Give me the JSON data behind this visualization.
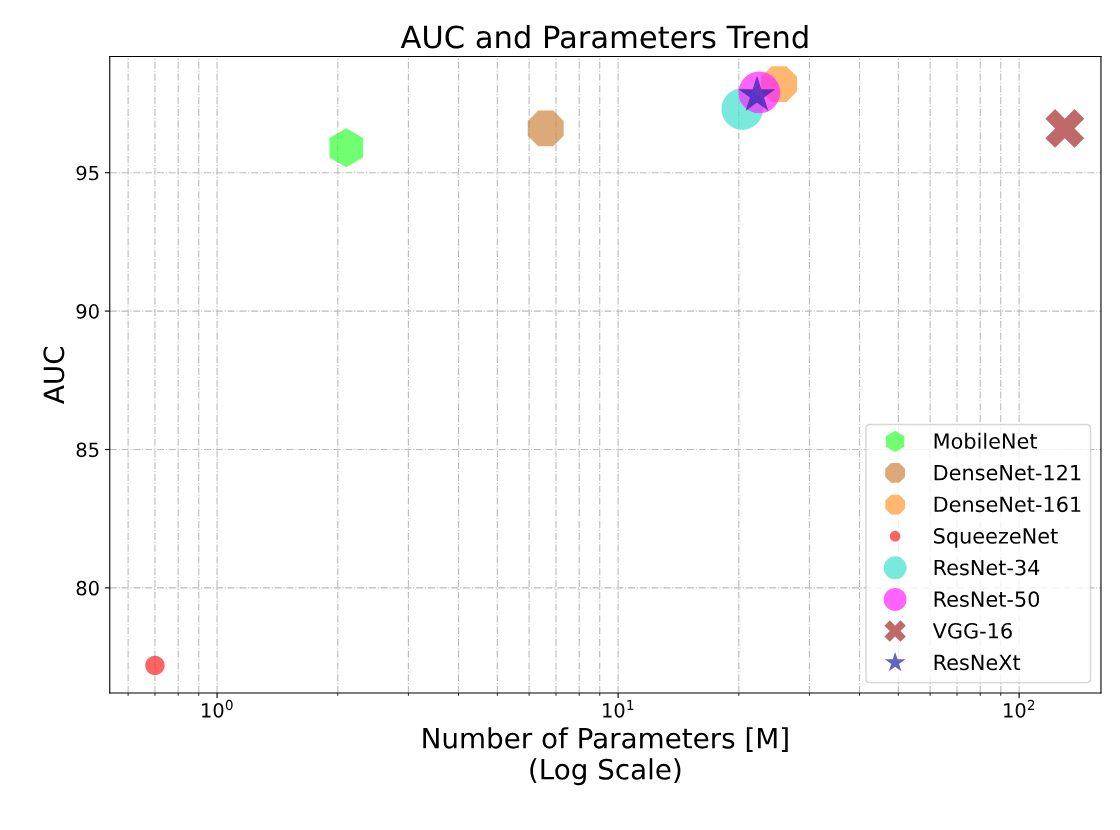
{
  "chart_data": {
    "type": "scatter",
    "title": "AUC and Parameters Trend",
    "xlabel": "Number of Parameters [M]\n(Log Scale)",
    "ylabel": "AUC",
    "log": "x",
    "xlim": [
      0.54,
      160
    ],
    "xticks": [
      {
        "value": 1,
        "label": "10$^{0}$"
      },
      {
        "value": 10,
        "label": "10$^{1}$"
      },
      {
        "value": 100,
        "label": "10$^{2}$"
      }
    ],
    "ylim": [
      76.2,
      99.2
    ],
    "yticks": [
      80,
      85,
      90,
      95
    ],
    "grid": true,
    "legend": "bottom right",
    "series": [
      {
        "name": "MobileNet",
        "color": "#33ff33",
        "x": [
          2.1
        ],
        "values": [
          95.9
        ]
      },
      {
        "name": "DenseNet-121",
        "color": "#cd853f",
        "x": [
          6.6
        ],
        "values": [
          96.6
        ]
      },
      {
        "name": "DenseNet-161",
        "color": "#ff9933",
        "x": [
          25.2
        ],
        "values": [
          98.2
        ]
      },
      {
        "name": "SqueezeNet",
        "color": "#ff2222",
        "marker": "circle",
        "x": [
          0.7
        ],
        "values": [
          77.2
        ]
      },
      {
        "name": "ResNet-34",
        "color": "#40e0d0",
        "marker": "circle",
        "x": [
          20.4
        ],
        "values": [
          97.3
        ]
      },
      {
        "name": "ResNet-50",
        "color": "#ff22ff",
        "marker": "circle",
        "x": [
          22.5
        ],
        "values": [
          97.9
        ]
      },
      {
        "name": "VGG-16",
        "color": "#a52a2a",
        "marker": "cross",
        "x": [
          130
        ],
        "values": [
          96.6
        ]
      },
      {
        "name": "ResNeXt",
        "color": "#2222aa",
        "marker": "star",
        "x": [
          22.2
        ],
        "values": [
          97.8
        ]
      }
    ]
  }
}
